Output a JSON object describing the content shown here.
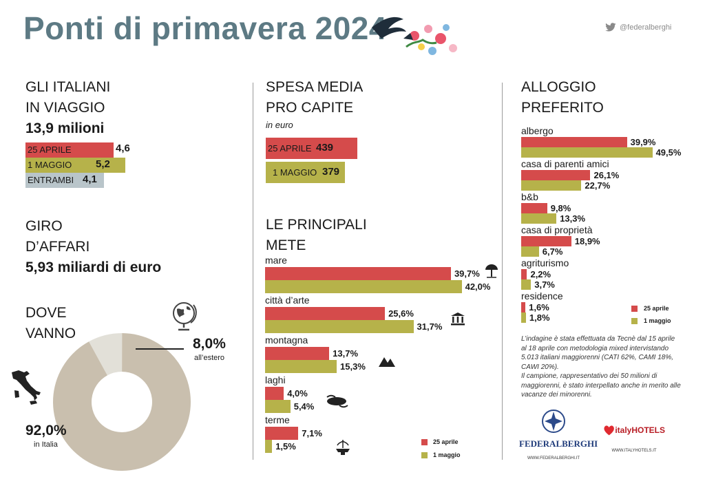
{
  "title": "Ponti di primavera 2024",
  "twitter": "@federalberghi",
  "colors": {
    "red": "#d54b4b",
    "olive": "#b6b24a",
    "grey": "#b9c5ca",
    "slate": "#5d7a84",
    "donut_main": "#c9bfae",
    "donut_small": "#e2e0d8"
  },
  "viaggio": {
    "heading_line1": "GLI ITALIANI",
    "heading_line2": "IN VIAGGIO",
    "total": "13,9 milioni",
    "rows": [
      {
        "label": "25 APRILE",
        "value": "4,6"
      },
      {
        "label": "1 MAGGIO",
        "value": "5,2"
      },
      {
        "label": "ENTRAMBI",
        "value": "4,1"
      }
    ]
  },
  "affari": {
    "heading_line1": "GIRO",
    "heading_line2": "D’AFFARI",
    "value": "5,93 miliardi di euro"
  },
  "dove": {
    "heading_line1": "DOVE",
    "heading_line2": "VANNO",
    "estero_pct": "8,0%",
    "estero_label": "all’estero",
    "italia_pct": "92,0%",
    "italia_label": "in Italia"
  },
  "spesa": {
    "heading_line1": "SPESA MEDIA",
    "heading_line2": "PRO CAPITE",
    "unit": "in euro",
    "rows": [
      {
        "label": "25 APRILE",
        "value": "439"
      },
      {
        "label": "1 MAGGIO",
        "value": "379"
      }
    ]
  },
  "mete": {
    "heading_line1": "LE PRINCIPALI",
    "heading_line2": "METE",
    "items": [
      {
        "name": "mare",
        "v1": "39,7%",
        "v2": "42,0%"
      },
      {
        "name": "città d’arte",
        "v1": "25,6%",
        "v2": "31,7%"
      },
      {
        "name": "montagna",
        "v1": "13,7%",
        "v2": "15,3%"
      },
      {
        "name": "laghi",
        "v1": "4,0%",
        "v2": "5,4%"
      },
      {
        "name": "terme",
        "v1": "7,1%",
        "v2": "1,5%"
      }
    ],
    "legend": [
      "25 aprile",
      "1 maggio"
    ]
  },
  "alloggio": {
    "heading_line1": "ALLOGGIO",
    "heading_line2": "PREFERITO",
    "items": [
      {
        "name": "albergo",
        "v1": "39,9%",
        "v2": "49,5%"
      },
      {
        "name": "casa di parenti amici",
        "v1": "26,1%",
        "v2": "22,7%"
      },
      {
        "name": "b&b",
        "v1": "9,8%",
        "v2": "13,3%"
      },
      {
        "name": "casa di proprietà",
        "v1": "18,9%",
        "v2": "6,7%"
      },
      {
        "name": "agriturismo",
        "v1": "2,2%",
        "v2": "3,7%"
      },
      {
        "name": "residence",
        "v1": "1,6%",
        "v2": "1,8%"
      }
    ],
    "legend": [
      "25 aprile",
      "1 maggio"
    ]
  },
  "note": {
    "p1": "L’indagine è stata effettuata da Tecnè dal 15 aprile al 18 aprile con metodologia mixed intervistando 5.013 italiani maggiorenni (CATI 62%, CAMI 18%, CAWI 20%).",
    "p2": "Il campione, rappresentativo dei 50 milioni di maggiorenni, è stato interpellato anche in merito alle vacanze dei minorenni."
  },
  "logos": {
    "federalberghi": "FEDERALBERGHI",
    "federalberghi_url": "WWW.FEDERALBERGHI.IT",
    "italyhotels_prefix": "italy",
    "italyhotels_suffix": "HOTELS",
    "italyhotels_url": "WWW.ITALYHOTELS.IT"
  },
  "chart_data": [
    {
      "type": "bar",
      "title": "GLI ITALIANI IN VIAGGIO",
      "categories": [
        "25 APRILE",
        "1 MAGGIO",
        "ENTRAMBI"
      ],
      "values": [
        4.6,
        5.2,
        4.1
      ]
    },
    {
      "type": "bar",
      "title": "SPESA MEDIA PRO CAPITE",
      "categories": [
        "25 APRILE",
        "1 MAGGIO"
      ],
      "values": [
        439,
        379
      ]
    },
    {
      "type": "pie",
      "title": "DOVE VANNO",
      "categories": [
        "all’estero",
        "in Italia"
      ],
      "values": [
        8.0,
        92.0
      ]
    },
    {
      "type": "bar",
      "title": "LE PRINCIPALI METE",
      "categories": [
        "mare",
        "città d’arte",
        "montagna",
        "laghi",
        "terme"
      ],
      "series": [
        {
          "name": "25 aprile",
          "values": [
            39.7,
            25.6,
            13.7,
            4.0,
            7.1
          ]
        },
        {
          "name": "1 maggio",
          "values": [
            42.0,
            31.7,
            15.3,
            5.4,
            1.5
          ]
        }
      ]
    },
    {
      "type": "bar",
      "title": "ALLOGGIO PREFERITO",
      "categories": [
        "albergo",
        "casa di parenti amici",
        "b&b",
        "casa di proprietà",
        "agriturismo",
        "residence"
      ],
      "series": [
        {
          "name": "25 aprile",
          "values": [
            39.9,
            26.1,
            9.8,
            18.9,
            2.2,
            1.6
          ]
        },
        {
          "name": "1 maggio",
          "values": [
            49.5,
            22.7,
            13.3,
            6.7,
            3.7,
            1.8
          ]
        }
      ]
    }
  ]
}
